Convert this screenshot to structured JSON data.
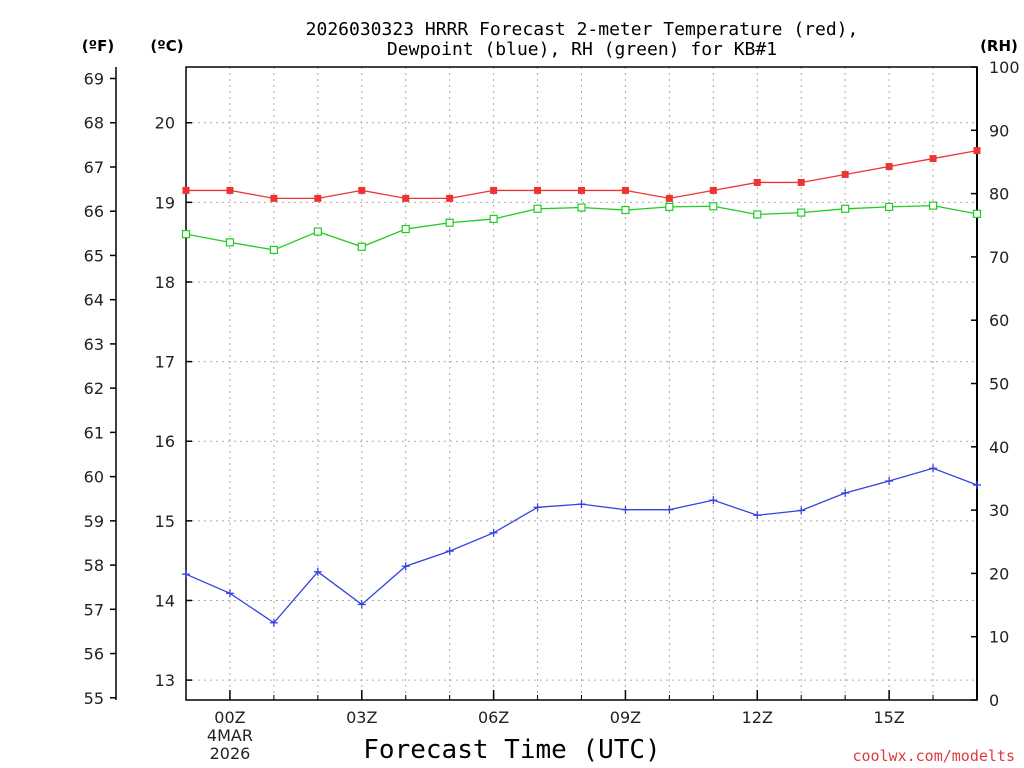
{
  "chart_data": {
    "type": "line",
    "title_line1": "2026030323 HRRR Forecast 2-meter Temperature (red),",
    "title_line2": "Dewpoint (blue), RH (green) for KB#1",
    "xlabel": "Forecast Time (UTC)",
    "credit": "coolwx.com/modelts",
    "axis_labels": {
      "fahrenheit": "(ºF)",
      "celsius": "(ºC)",
      "rh": "(RH)"
    },
    "x_hours": [
      23,
      24,
      25,
      26,
      27,
      28,
      29,
      30,
      31,
      32,
      33,
      34,
      35,
      36,
      37,
      38,
      39,
      40,
      41
    ],
    "xlim": [
      23,
      41
    ],
    "x_ticks": [
      {
        "hour": 24,
        "label": "00Z"
      },
      {
        "hour": 27,
        "label": "03Z"
      },
      {
        "hour": 30,
        "label": "06Z"
      },
      {
        "hour": 33,
        "label": "09Z"
      },
      {
        "hour": 36,
        "label": "12Z"
      },
      {
        "hour": 39,
        "label": "15Z"
      }
    ],
    "date_label": [
      "4MAR",
      "2026"
    ],
    "celsius_ylim": [
      12.75,
      20.7
    ],
    "celsius_ticks": [
      "13",
      "14",
      "15",
      "16",
      "17",
      "18",
      "19",
      "20"
    ],
    "fahrenheit_ylim": [
      54.95,
      69.26
    ],
    "fahrenheit_ticks": [
      "55",
      "56",
      "57",
      "58",
      "59",
      "60",
      "61",
      "62",
      "63",
      "64",
      "65",
      "66",
      "67",
      "68",
      "69"
    ],
    "rh_ylim": [
      0,
      100
    ],
    "rh_ticks": [
      "0",
      "10",
      "20",
      "30",
      "40",
      "50",
      "60",
      "70",
      "80",
      "90",
      "100"
    ],
    "colors": {
      "temperature": "#ee3333",
      "dewpoint": "#3344dd",
      "rh": "#22cc22",
      "grid": "#aaaaaa",
      "credit": "#e0393e"
    },
    "series": [
      {
        "name": "Temperature",
        "units": "C",
        "values": [
          19.15,
          19.15,
          19.05,
          19.05,
          19.15,
          19.05,
          19.05,
          19.15,
          19.15,
          19.15,
          19.15,
          19.05,
          19.15,
          19.25,
          19.25,
          19.35,
          19.45,
          19.55,
          19.65
        ]
      },
      {
        "name": "Dewpoint",
        "units": "C",
        "values": [
          14.33,
          14.09,
          13.72,
          14.36,
          13.95,
          14.43,
          14.62,
          14.85,
          15.17,
          15.21,
          15.14,
          15.14,
          15.26,
          15.07,
          15.13,
          15.35,
          15.5,
          15.66,
          15.45
        ]
      },
      {
        "name": "RH",
        "units": "%",
        "values": [
          73.6,
          72.3,
          71.1,
          74.0,
          71.6,
          74.4,
          75.4,
          76.0,
          77.6,
          77.8,
          77.4,
          77.9,
          78.0,
          76.7,
          77.0,
          77.6,
          77.9,
          78.1,
          76.8
        ]
      }
    ]
  }
}
